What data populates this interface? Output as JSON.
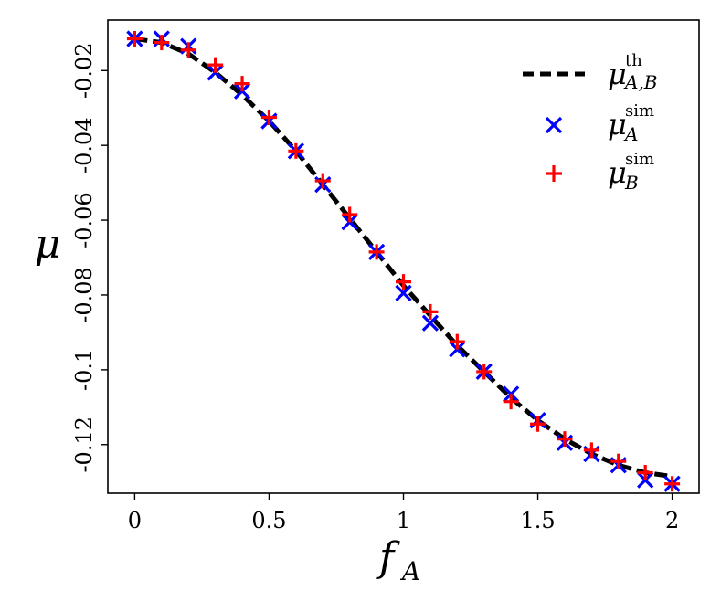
{
  "chart_data": {
    "type": "line",
    "xlabel": "f",
    "xlabel_sub": "A",
    "ylabel": "μ",
    "xlim": [
      -0.1,
      2.1
    ],
    "ylim": [
      -0.133,
      -0.0065
    ],
    "x_ticks": [
      0,
      0.5,
      1,
      1.5,
      2
    ],
    "x_tick_labels": [
      "0",
      "0.5",
      "1",
      "1.5",
      "2"
    ],
    "y_ticks": [
      -0.02,
      -0.04,
      -0.06,
      -0.08,
      -0.1,
      -0.12
    ],
    "y_tick_labels": [
      "-0.02",
      "-0.04",
      "-0.06",
      "-0.08",
      "-0.1",
      "-0.12"
    ],
    "grid": false,
    "legend_position": "top-right",
    "series": [
      {
        "name": "μ",
        "name_sup": "th",
        "name_sub": "A,B",
        "style": "dashed",
        "color": "#000000",
        "x": [
          0,
          0.1,
          0.2,
          0.3,
          0.4,
          0.5,
          0.6,
          0.7,
          0.8,
          0.9,
          1.0,
          1.1,
          1.2,
          1.3,
          1.4,
          1.5,
          1.6,
          1.7,
          1.8,
          1.9,
          2.0
        ],
        "y": [
          -0.0115,
          -0.0125,
          -0.0155,
          -0.0205,
          -0.0265,
          -0.0335,
          -0.0415,
          -0.0505,
          -0.0595,
          -0.0685,
          -0.0775,
          -0.0855,
          -0.0935,
          -0.1005,
          -0.1075,
          -0.1135,
          -0.1185,
          -0.1225,
          -0.1255,
          -0.1275,
          -0.1285
        ]
      },
      {
        "name": "μ",
        "name_sup": "sim",
        "name_sub": "A",
        "marker": "x",
        "color": "#0000ff",
        "x": [
          0,
          0.1,
          0.2,
          0.3,
          0.4,
          0.5,
          0.6,
          0.7,
          0.8,
          0.9,
          1.0,
          1.1,
          1.2,
          1.3,
          1.4,
          1.5,
          1.6,
          1.7,
          1.8,
          1.9,
          2.0
        ],
        "y": [
          -0.0115,
          -0.0115,
          -0.0135,
          -0.0205,
          -0.0255,
          -0.0335,
          -0.0415,
          -0.0505,
          -0.0605,
          -0.0685,
          -0.0795,
          -0.0875,
          -0.0945,
          -0.1005,
          -0.1065,
          -0.1135,
          -0.1195,
          -0.1225,
          -0.1255,
          -0.1295,
          -0.1305
        ]
      },
      {
        "name": "μ",
        "name_sup": "sim",
        "name_sub": "B",
        "marker": "+",
        "color": "#ff0000",
        "x": [
          0,
          0.1,
          0.2,
          0.3,
          0.4,
          0.5,
          0.6,
          0.7,
          0.8,
          0.9,
          1.0,
          1.1,
          1.2,
          1.3,
          1.4,
          1.5,
          1.6,
          1.7,
          1.8,
          1.9,
          2.0
        ],
        "y": [
          -0.0115,
          -0.0125,
          -0.0145,
          -0.0185,
          -0.0235,
          -0.0325,
          -0.0415,
          -0.0495,
          -0.0585,
          -0.0685,
          -0.0765,
          -0.0845,
          -0.0925,
          -0.1005,
          -0.1085,
          -0.1145,
          -0.1185,
          -0.1215,
          -0.1245,
          -0.1275,
          -0.1305
        ]
      }
    ]
  }
}
